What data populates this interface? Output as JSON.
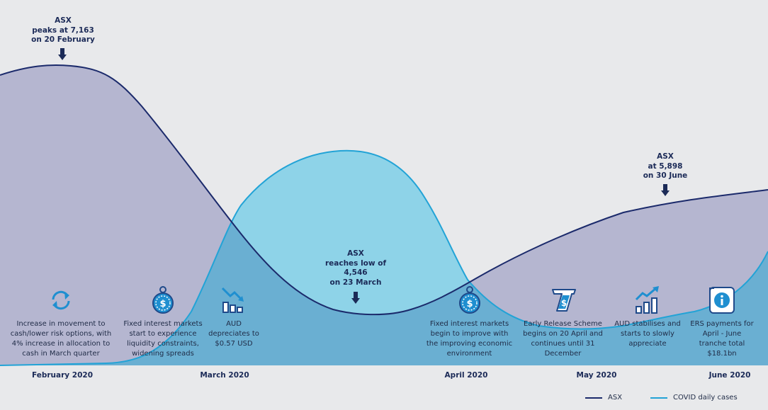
{
  "chart_data": {
    "type": "area",
    "series": [
      {
        "name": "ASX",
        "color": "#1b2a6b",
        "fill": "#b5b6d0"
      },
      {
        "name": "COVID daily cases",
        "color": "#22a3d6",
        "fill": "#8ed3e8"
      }
    ],
    "x_categories": [
      "February 2020",
      "March 2020",
      "April 2020",
      "May 2020",
      "June 2020"
    ],
    "annotations": [
      {
        "id": "asx-peak",
        "text": "ASX\npeaks at 7,163\non 20 February",
        "value": 7163,
        "date": "20 February"
      },
      {
        "id": "asx-low",
        "text": "ASX\nreaches low of\n4,546\non 23 March",
        "value": 4546,
        "date": "23 March"
      },
      {
        "id": "asx-june",
        "text": "ASX\nat 5,898\non 30 June",
        "value": 5898,
        "date": "30 June"
      }
    ],
    "events": [
      {
        "icon": "refresh-icon",
        "text": "Increase in movement to\ncash/lower risk options, with\n4% increase in allocation to\ncash in March quarter"
      },
      {
        "icon": "money-bag-icon",
        "text": "Fixed interest markets\nstart to experience\nliquidity constraints,\nwidening spreads"
      },
      {
        "icon": "falling-chart-icon",
        "text": "AUD\ndepreciates to\n$0.57 USD"
      },
      {
        "icon": "money-bag-icon",
        "text": "Fixed interest markets\nbegin to improve with\nthe improving economic\nenvironment"
      },
      {
        "icon": "ticket-dollar-icon",
        "text": "Early Release Scheme\nbegins on 20 April and\ncontinues until 31\nDecember"
      },
      {
        "icon": "rising-chart-icon",
        "text": "AUD stabilises and\nstarts to slowly\nappreciate"
      },
      {
        "icon": "info-document-icon",
        "text": "ERS payments for\nApril - June\ntranche total\n$18.1bn"
      }
    ],
    "legend_position": "bottom-right",
    "grid": false
  }
}
